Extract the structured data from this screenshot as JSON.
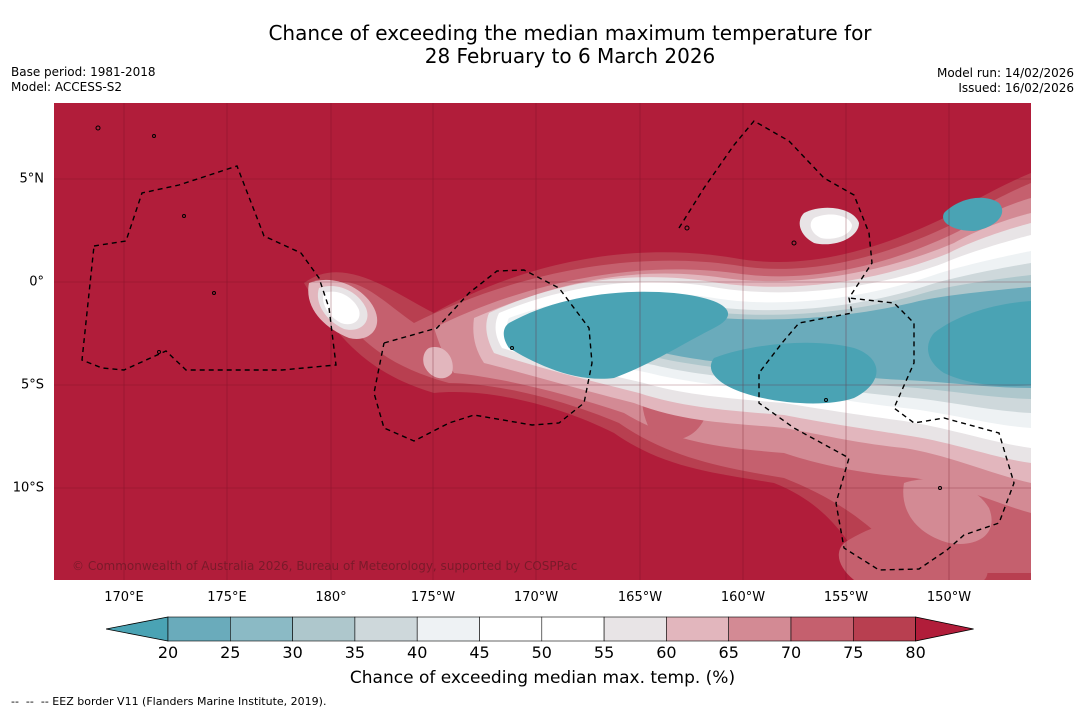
{
  "title": {
    "line1": "Chance of exceeding the median maximum temperature for",
    "line2": "28 February to 6 March 2026"
  },
  "meta": {
    "base_period": "Base period: 1981-2018",
    "model": "Model: ACCESS-S2",
    "model_run": "Model run: 14/02/2026",
    "issued": "Issued: 16/02/2026"
  },
  "map": {
    "copyright": "© Commonwealth of Australia 2026, Bureau of Meteorology, supported by COSPPac",
    "latitude_labels": [
      "5°N",
      "0°",
      "5°S",
      "10°S"
    ],
    "longitude_labels": [
      "170°E",
      "175°E",
      "180°",
      "175°W",
      "170°W",
      "165°W",
      "160°W",
      "155°W",
      "150°W"
    ]
  },
  "colorbar": {
    "ticks": [
      "20",
      "25",
      "30",
      "35",
      "40",
      "45",
      "50",
      "55",
      "60",
      "65",
      "70",
      "75",
      "80"
    ],
    "title": "Chance of exceeding median max. temp. (%)",
    "colors": [
      "#4aa3b4",
      "#6aabbb",
      "#8bbac5",
      "#aec7cc",
      "#ced8db",
      "#eef2f4",
      "#ffffff",
      "#ffffff",
      "#e8e4e6",
      "#e2b6bd",
      "#d38a94",
      "#c5606e",
      "#b83f50",
      "#b11d3a"
    ]
  },
  "legend": {
    "eez": "--  --  -- EEZ border V11 (Flanders Marine Institute, 2019)."
  }
}
